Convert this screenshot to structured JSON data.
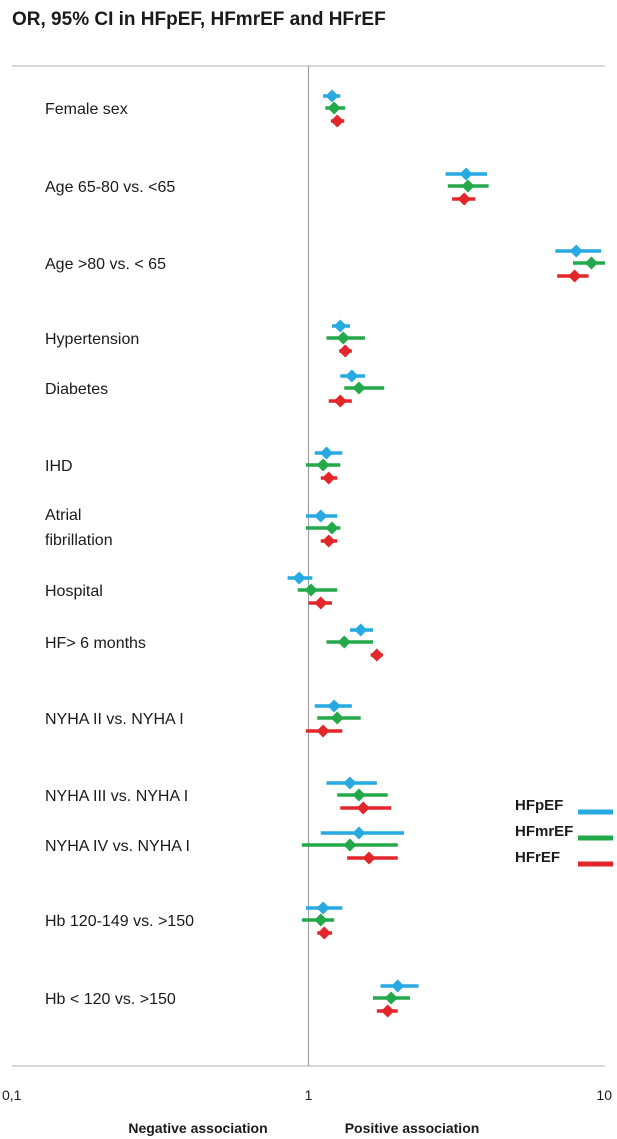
{
  "chart_data": {
    "type": "forest",
    "title": "OR, 95% CI  in HFpEF, HFmrEF and HFrEF",
    "x_scale": "log",
    "xlim": [
      0.1,
      10
    ],
    "x_ticks": [
      "0,1",
      "1",
      "10"
    ],
    "reference_line": 1,
    "annotations": [
      "Negative association",
      "Positive association"
    ],
    "legend": {
      "position": "right",
      "entries": [
        "HFpEF",
        "HFmrEF",
        "HFrEF"
      ]
    },
    "colors": {
      "HFpEF": "#27a9e1",
      "HFmrEF": "#23a84a",
      "HFrEF": "#e3262a"
    },
    "series": [
      "HFpEF",
      "HFmrEF",
      "HFrEF"
    ],
    "rows": [
      {
        "label": "Female sex",
        "estimates": [
          [
            1.2,
            1.12,
            1.28
          ],
          [
            1.22,
            1.14,
            1.33
          ],
          [
            1.25,
            1.19,
            1.32
          ]
        ]
      },
      {
        "label": "Age 65-80 vs. <65",
        "estimates": [
          [
            3.4,
            2.9,
            4.0
          ],
          [
            3.45,
            2.95,
            4.05
          ],
          [
            3.35,
            3.05,
            3.65
          ]
        ]
      },
      {
        "label": "Age >80 vs. < 65",
        "estimates": [
          [
            8.0,
            6.8,
            9.7
          ],
          [
            9.0,
            7.8,
            10.0
          ],
          [
            7.9,
            6.9,
            8.8
          ]
        ]
      },
      {
        "label": "Hypertension",
        "estimates": [
          [
            1.28,
            1.2,
            1.38
          ],
          [
            1.31,
            1.15,
            1.55
          ],
          [
            1.33,
            1.27,
            1.4
          ]
        ]
      },
      {
        "label": "Diabetes",
        "estimates": [
          [
            1.4,
            1.28,
            1.55
          ],
          [
            1.48,
            1.32,
            1.8
          ],
          [
            1.28,
            1.17,
            1.4
          ]
        ]
      },
      {
        "label": "IHD",
        "estimates": [
          [
            1.15,
            1.05,
            1.3
          ],
          [
            1.12,
            0.98,
            1.28
          ],
          [
            1.17,
            1.1,
            1.25
          ]
        ]
      },
      {
        "label": "Atrial fibrillation",
        "estimates": [
          [
            1.1,
            0.98,
            1.25
          ],
          [
            1.2,
            0.98,
            1.28
          ],
          [
            1.17,
            1.1,
            1.25
          ]
        ]
      },
      {
        "label": "Hospital",
        "estimates": [
          [
            0.93,
            0.85,
            1.03
          ],
          [
            1.02,
            0.92,
            1.25
          ],
          [
            1.1,
            1.0,
            1.2
          ]
        ]
      },
      {
        "label": "HF> 6 months",
        "estimates": [
          [
            1.5,
            1.38,
            1.65
          ],
          [
            1.32,
            1.15,
            1.65
          ],
          [
            1.7,
            1.62,
            1.78
          ]
        ]
      },
      {
        "label": "NYHA II vs. NYHA I",
        "estimates": [
          [
            1.22,
            1.05,
            1.4
          ],
          [
            1.25,
            1.07,
            1.5
          ],
          [
            1.12,
            0.98,
            1.3
          ]
        ]
      },
      {
        "label": "NYHA III vs. NYHA I",
        "estimates": [
          [
            1.38,
            1.15,
            1.7
          ],
          [
            1.48,
            1.25,
            1.85
          ],
          [
            1.53,
            1.28,
            1.9
          ]
        ]
      },
      {
        "label": "NYHA IV vs. NYHA I",
        "estimates": [
          [
            1.48,
            1.1,
            2.1
          ],
          [
            1.38,
            0.95,
            2.0
          ],
          [
            1.6,
            1.35,
            2.0
          ]
        ]
      },
      {
        "label": "Hb 120-149 vs. >150",
        "estimates": [
          [
            1.12,
            0.98,
            1.3
          ],
          [
            1.1,
            0.95,
            1.22
          ],
          [
            1.13,
            1.07,
            1.2
          ]
        ]
      },
      {
        "label": "Hb < 120 vs. >150",
        "estimates": [
          [
            2.0,
            1.75,
            2.35
          ],
          [
            1.9,
            1.65,
            2.2
          ],
          [
            1.85,
            1.7,
            2.0
          ]
        ]
      }
    ]
  }
}
